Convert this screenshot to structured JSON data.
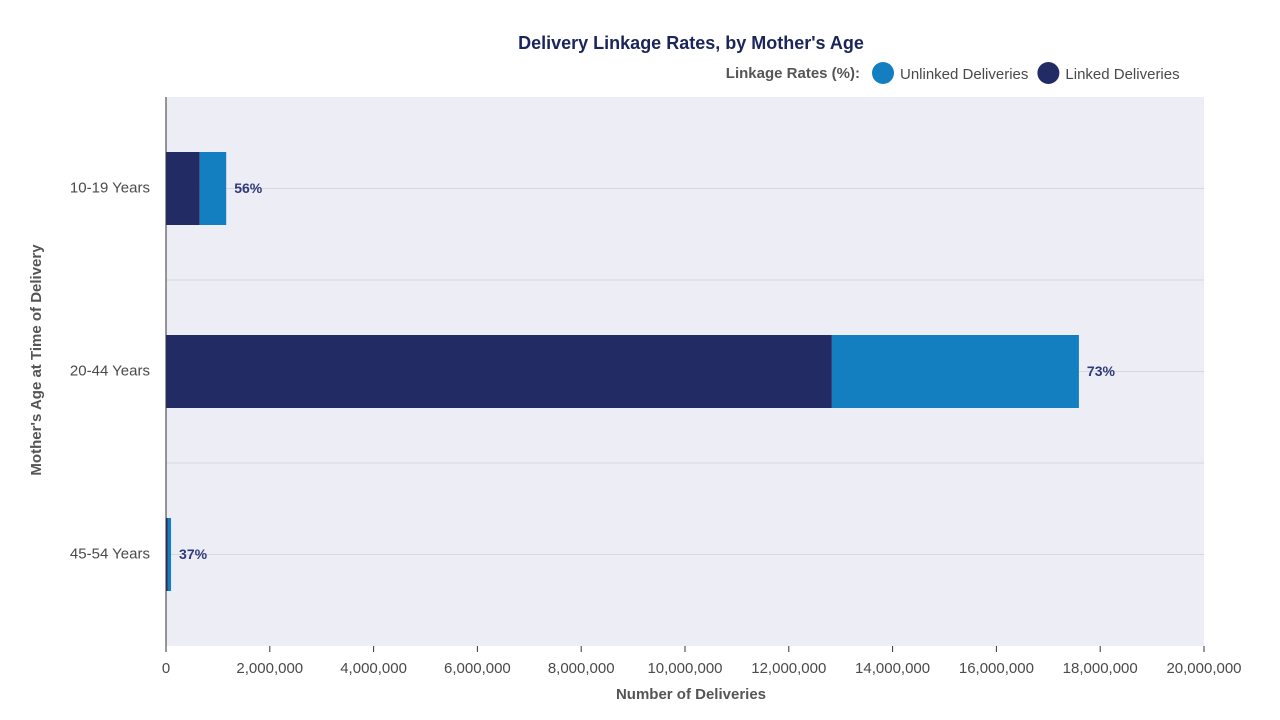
{
  "chart_data": {
    "type": "stacked-bar-horizontal",
    "title": "Delivery Linkage Rates, by Mother's Age",
    "legend_title": "Linkage Rates (%):",
    "x_label": "Number of Deliveries",
    "y_label": "Mother's Age at Time of Delivery",
    "categories": [
      "10-19 Years",
      "20-44 Years",
      "45-54 Years"
    ],
    "series": [
      {
        "name": "Unlinked Deliveries",
        "color": "#137fc0",
        "values": [
          510000,
          4760000,
          61000
        ]
      },
      {
        "name": "Linked Deliveries",
        "color": "#232b65",
        "values": [
          650000,
          12830000,
          36000
        ]
      }
    ],
    "rate_labels": [
      "56%",
      "73%",
      "37%"
    ],
    "xlim": [
      0,
      20000000
    ],
    "xticks": [
      {
        "value": 0,
        "label": "0"
      },
      {
        "value": 2000000,
        "label": "2,000,000"
      },
      {
        "value": 4000000,
        "label": "4,000,000"
      },
      {
        "value": 6000000,
        "label": "6,000,000"
      },
      {
        "value": 8000000,
        "label": "8,000,000"
      },
      {
        "value": 10000000,
        "label": "10,000,000"
      },
      {
        "value": 12000000,
        "label": "12,000,000"
      },
      {
        "value": 14000000,
        "label": "14,000,000"
      },
      {
        "value": 16000000,
        "label": "16,000,000"
      },
      {
        "value": 18000000,
        "label": "18,000,000"
      },
      {
        "value": 20000000,
        "label": "20,000,000"
      }
    ],
    "grid": true
  }
}
